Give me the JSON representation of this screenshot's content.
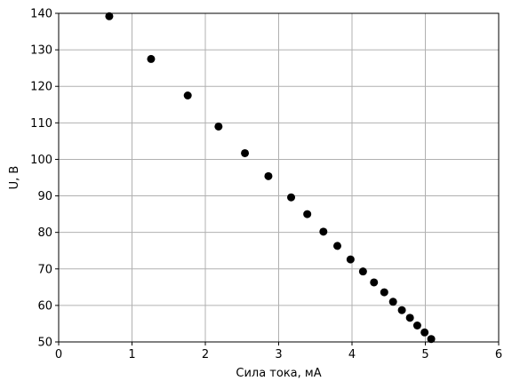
{
  "chart_data": {
    "type": "scatter",
    "xlabel": "Сила тока, мА",
    "ylabel": "U, В",
    "xlim": [
      0,
      6
    ],
    "ylim": [
      50,
      140
    ],
    "xticks": [
      0,
      1,
      2,
      3,
      4,
      5,
      6
    ],
    "yticks": [
      50,
      60,
      70,
      80,
      90,
      100,
      110,
      120,
      130,
      140
    ],
    "grid": true,
    "legend": "none",
    "marker_color": "#000000",
    "grid_color": "#b0b0b0",
    "series": [
      {
        "x": [
          0.69,
          1.26,
          1.76,
          2.18,
          2.54,
          2.86,
          3.17,
          3.39,
          3.61,
          3.8,
          3.98,
          4.15,
          4.3,
          4.44,
          4.56,
          4.68,
          4.79,
          4.89,
          4.99,
          5.08
        ],
        "y": [
          139.2,
          127.5,
          117.5,
          109.0,
          101.7,
          95.4,
          89.6,
          85.0,
          80.2,
          76.3,
          72.6,
          69.3,
          66.3,
          63.6,
          61.0,
          58.7,
          56.6,
          54.5,
          52.6,
          50.8
        ]
      }
    ]
  }
}
